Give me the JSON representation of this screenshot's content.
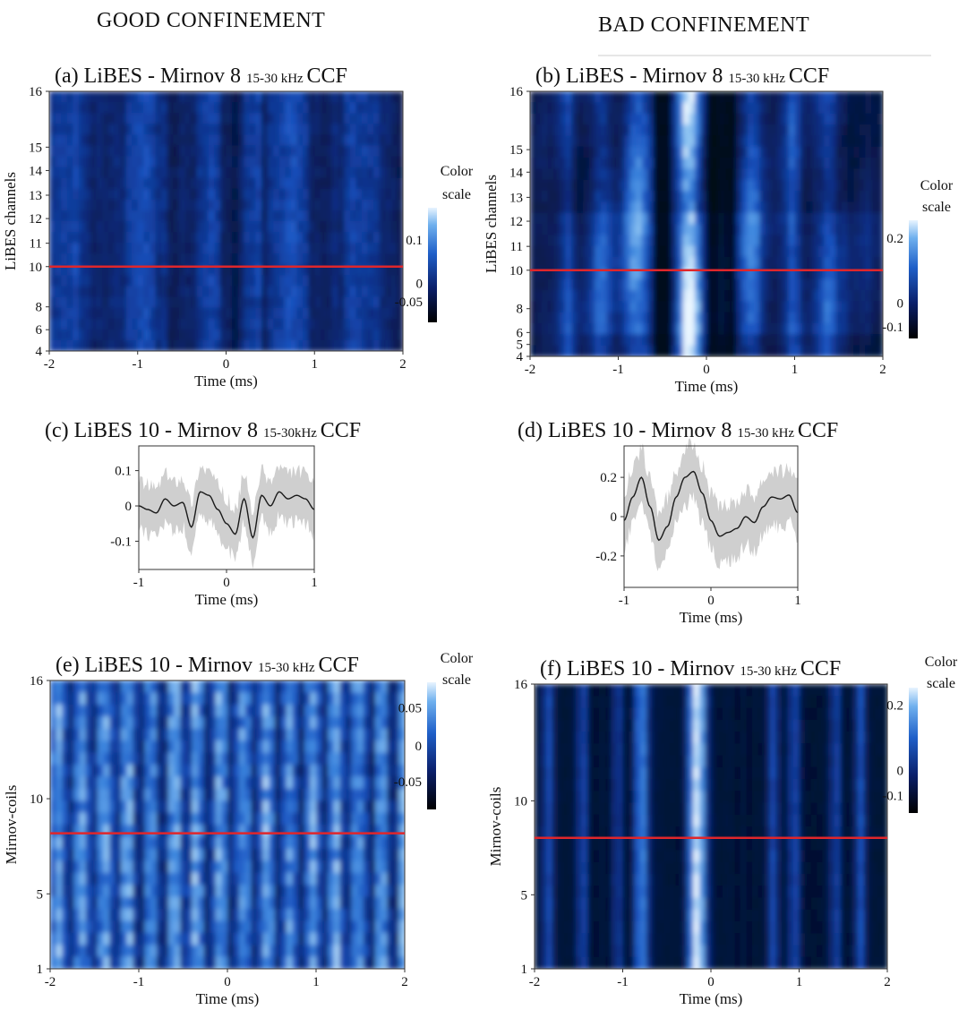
{
  "headers": {
    "good": "GOOD CONFINEMENT",
    "bad": "BAD CONFINEMENT"
  },
  "colorscale_label_line1": "Color",
  "colorscale_label_line2": "scale",
  "chart_data": [
    {
      "id": "a",
      "type": "heatmap",
      "title_main": "(a) LiBES - Mirnov 8",
      "title_band": "15-30 kHz",
      "title_end": "CCF",
      "xlabel": "Time (ms)",
      "ylabel": "LiBES channels",
      "xlim": [
        -2,
        2
      ],
      "ylim": [
        4,
        16
      ],
      "xticks": [
        "-2",
        "-1",
        "0",
        "1",
        "2"
      ],
      "yticks": [
        "4",
        "6",
        "8",
        "10",
        "11",
        "12",
        "13",
        "14",
        "15",
        "16"
      ],
      "reference_line": 10,
      "colorscale": {
        "ticks": [
          "0.1",
          "0",
          "-0.05"
        ],
        "range": [
          -0.08,
          0.15
        ]
      }
    },
    {
      "id": "b",
      "type": "heatmap",
      "title_main": "(b) LiBES - Mirnov 8",
      "title_band": "15-30 kHz",
      "title_end": "CCF",
      "xlabel": "Time (ms)",
      "ylabel": "LiBES channels",
      "xlim": [
        -2,
        2
      ],
      "ylim": [
        4,
        16
      ],
      "xticks": [
        "-2",
        "-1",
        "0",
        "1",
        "2"
      ],
      "yticks": [
        "4",
        "5",
        "6",
        "8",
        "10",
        "11",
        "12",
        "13",
        "14",
        "15",
        "16"
      ],
      "reference_line": 10,
      "colorscale": {
        "ticks": [
          "0.2",
          "0",
          "-0.1"
        ],
        "range": [
          -0.12,
          0.25
        ]
      }
    },
    {
      "id": "c",
      "type": "line",
      "title_main": "(c) LiBES 10 - Mirnov 8",
      "title_band": "15-30kHz",
      "title_end": "CCF",
      "xlabel": "Time (ms)",
      "xlim": [
        -1,
        1
      ],
      "ylim": [
        -0.18,
        0.17
      ],
      "xticks": [
        "-1",
        "0",
        "1"
      ],
      "yticks": [
        "0.1",
        "0",
        "-0.1"
      ],
      "x": [
        -1,
        -0.9,
        -0.8,
        -0.7,
        -0.6,
        -0.5,
        -0.4,
        -0.3,
        -0.2,
        -0.1,
        0,
        0.1,
        0.2,
        0.3,
        0.4,
        0.5,
        0.6,
        0.7,
        0.8,
        0.9,
        1
      ],
      "mean": [
        0.0,
        -0.01,
        -0.02,
        0.02,
        0.0,
        0.01,
        -0.06,
        0.04,
        0.03,
        -0.01,
        -0.05,
        -0.08,
        0.02,
        -0.09,
        0.03,
        0.0,
        0.04,
        0.02,
        0.03,
        0.02,
        -0.01
      ],
      "band_halfwidth": 0.07
    },
    {
      "id": "d",
      "type": "line",
      "title_main": "(d) LiBES 10 - Mirnov 8",
      "title_band": "15-30 kHz",
      "title_end": "CCF",
      "xlabel": "Time (ms)",
      "xlim": [
        -1,
        1
      ],
      "ylim": [
        -0.36,
        0.36
      ],
      "xticks": [
        "-1",
        "0",
        "1"
      ],
      "yticks": [
        "0.2",
        "0",
        "-0.2"
      ],
      "x": [
        -1,
        -0.9,
        -0.8,
        -0.7,
        -0.6,
        -0.5,
        -0.4,
        -0.3,
        -0.2,
        -0.1,
        0,
        0.1,
        0.2,
        0.3,
        0.4,
        0.5,
        0.6,
        0.7,
        0.8,
        0.9,
        1
      ],
      "mean": [
        -0.02,
        0.1,
        0.2,
        0.05,
        -0.12,
        -0.05,
        0.1,
        0.2,
        0.23,
        0.12,
        -0.02,
        -0.1,
        -0.08,
        -0.06,
        0.0,
        -0.03,
        0.05,
        0.1,
        0.09,
        0.11,
        0.02
      ],
      "band_halfwidth": 0.14
    },
    {
      "id": "e",
      "type": "heatmap",
      "title_main": "(e) LiBES 10 - Mirnov",
      "title_band": "15-30 kHz",
      "title_end": "CCF",
      "xlabel": "Time (ms)",
      "ylabel": "Mirnov-coils",
      "xlim": [
        -2,
        2
      ],
      "ylim": [
        1,
        16
      ],
      "xticks": [
        "-2",
        "-1",
        "0",
        "1",
        "2"
      ],
      "yticks": [
        "1",
        "5",
        "10",
        "16"
      ],
      "reference_line": 8,
      "colorscale": {
        "ticks": [
          "0.05",
          "0",
          "-0.05"
        ],
        "range": [
          -0.08,
          0.08
        ]
      }
    },
    {
      "id": "f",
      "type": "heatmap",
      "title_main": "(f) LiBES 10 - Mirnov",
      "title_band": "15-30 kHz",
      "title_end": "CCF",
      "xlabel": "Time (ms)",
      "ylabel": "Mirnov-coils",
      "xlim": [
        -2,
        2
      ],
      "ylim": [
        1,
        16
      ],
      "xticks": [
        "-2",
        "-1",
        "0",
        "1",
        "2"
      ],
      "yticks": [
        "1",
        "5",
        "10",
        "16"
      ],
      "reference_line": 8,
      "colorscale": {
        "ticks": [
          "0.2",
          "0",
          "-0.1"
        ],
        "range": [
          -0.12,
          0.25
        ]
      }
    }
  ]
}
